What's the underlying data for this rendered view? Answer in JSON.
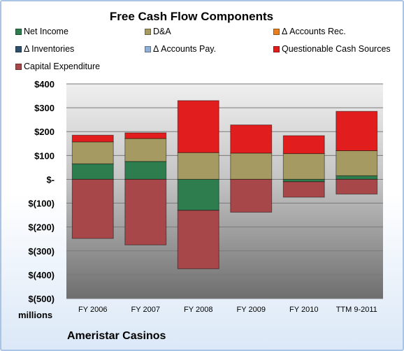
{
  "chart_data": {
    "type": "bar",
    "stacked": true,
    "title": "Free Cash Flow Components",
    "unit_label": "millions",
    "company": "Ameristar Casinos",
    "categories": [
      "FY 2006",
      "FY 2007",
      "FY 2008",
      "FY 2009",
      "FY 2010",
      "TTM 9-2011"
    ],
    "ylim": [
      -500,
      400
    ],
    "yticks": [
      400,
      300,
      200,
      100,
      0,
      -100,
      -200,
      -300,
      -400,
      -500
    ],
    "ytick_labels": [
      "$400",
      "$300",
      "$200",
      "$100",
      "$-",
      "$(100)",
      "$(200)",
      "$(300)",
      "$(400)",
      "$(500)"
    ],
    "grid": true,
    "legend_position": "top",
    "series": [
      {
        "name": "Net Income",
        "color": "#2e7d4f",
        "values": [
          65,
          75,
          -130,
          0,
          -10,
          15
        ]
      },
      {
        "name": "D&A",
        "color": "#a59a62",
        "values": [
          92,
          96,
          112,
          110,
          108,
          105
        ]
      },
      {
        "name": "Δ Accounts Rec.",
        "color": "#e8801f",
        "values": [
          0,
          0,
          0,
          0,
          0,
          0
        ]
      },
      {
        "name": "Δ Inventories",
        "color": "#2f4f6f",
        "values": [
          0,
          0,
          0,
          0,
          0,
          0
        ]
      },
      {
        "name": "Δ Accounts Pay.",
        "color": "#8fb1d8",
        "values": [
          0,
          0,
          0,
          0,
          0,
          0
        ]
      },
      {
        "name": "Questionable Cash Sources",
        "color": "#e21d1d",
        "values": [
          28,
          24,
          218,
          118,
          75,
          165
        ]
      },
      {
        "name": "Capital Expenditure",
        "color": "#a8474a",
        "values": [
          -248,
          -275,
          -245,
          -138,
          -65,
          -62
        ]
      }
    ]
  }
}
